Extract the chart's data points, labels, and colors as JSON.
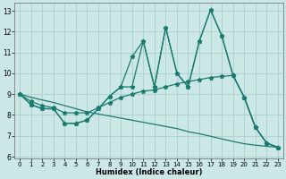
{
  "xlabel": "Humidex (Indice chaleur)",
  "bg_color": "#cce8e6",
  "line_color": "#1a7a6e",
  "grid_color": "#aacece",
  "xlim": [
    -0.5,
    23.5
  ],
  "ylim": [
    5.9,
    13.4
  ],
  "yticks": [
    6,
    7,
    8,
    9,
    10,
    11,
    12,
    13
  ],
  "xticks": [
    0,
    1,
    2,
    3,
    4,
    5,
    6,
    7,
    8,
    9,
    10,
    11,
    12,
    13,
    14,
    15,
    16,
    17,
    18,
    19,
    20,
    21,
    22,
    23
  ],
  "line1_x": [
    0,
    1,
    2,
    3,
    4,
    5,
    6,
    7,
    8,
    9,
    10,
    11,
    12,
    13,
    14,
    15,
    16,
    17,
    18,
    19,
    20,
    21,
    22,
    23
  ],
  "line1_y": [
    9.0,
    8.5,
    8.3,
    8.3,
    7.6,
    7.6,
    7.75,
    8.3,
    8.9,
    9.35,
    10.8,
    11.55,
    9.35,
    12.2,
    10.0,
    9.35,
    11.55,
    13.05,
    11.8,
    9.9,
    8.85,
    7.4,
    6.65,
    6.45
  ],
  "line2_x": [
    0,
    1,
    2,
    3,
    4,
    5,
    6,
    7,
    8,
    9,
    10,
    11,
    12,
    13,
    14,
    15,
    16,
    17,
    18,
    19,
    20,
    21,
    22,
    23
  ],
  "line2_y": [
    9.0,
    8.5,
    8.3,
    8.3,
    7.6,
    7.6,
    7.75,
    8.3,
    8.9,
    9.35,
    9.35,
    11.55,
    9.35,
    12.2,
    10.0,
    9.35,
    11.55,
    13.05,
    11.8,
    9.9,
    8.85,
    7.4,
    6.65,
    6.45
  ],
  "line3_x": [
    0,
    1,
    2,
    3,
    4,
    5,
    6,
    7,
    8,
    9,
    10,
    11,
    12,
    13,
    14,
    15,
    16,
    17,
    18,
    19,
    20,
    21,
    22,
    23
  ],
  "line3_y": [
    9.0,
    8.65,
    8.45,
    8.35,
    8.1,
    8.1,
    8.1,
    8.35,
    8.6,
    8.85,
    9.0,
    9.15,
    9.2,
    9.35,
    9.5,
    9.6,
    9.7,
    9.8,
    9.85,
    9.9,
    8.85,
    7.4,
    6.65,
    6.45
  ],
  "line4_x": [
    0,
    1,
    2,
    3,
    4,
    5,
    6,
    7,
    8,
    9,
    10,
    11,
    12,
    13,
    14,
    15,
    16,
    17,
    18,
    19,
    20,
    21,
    22,
    23
  ],
  "line4_y": [
    9.0,
    8.85,
    8.72,
    8.6,
    8.45,
    8.3,
    8.15,
    8.05,
    7.95,
    7.85,
    7.75,
    7.65,
    7.55,
    7.45,
    7.35,
    7.2,
    7.1,
    6.98,
    6.85,
    6.73,
    6.62,
    6.55,
    6.5,
    6.45
  ]
}
